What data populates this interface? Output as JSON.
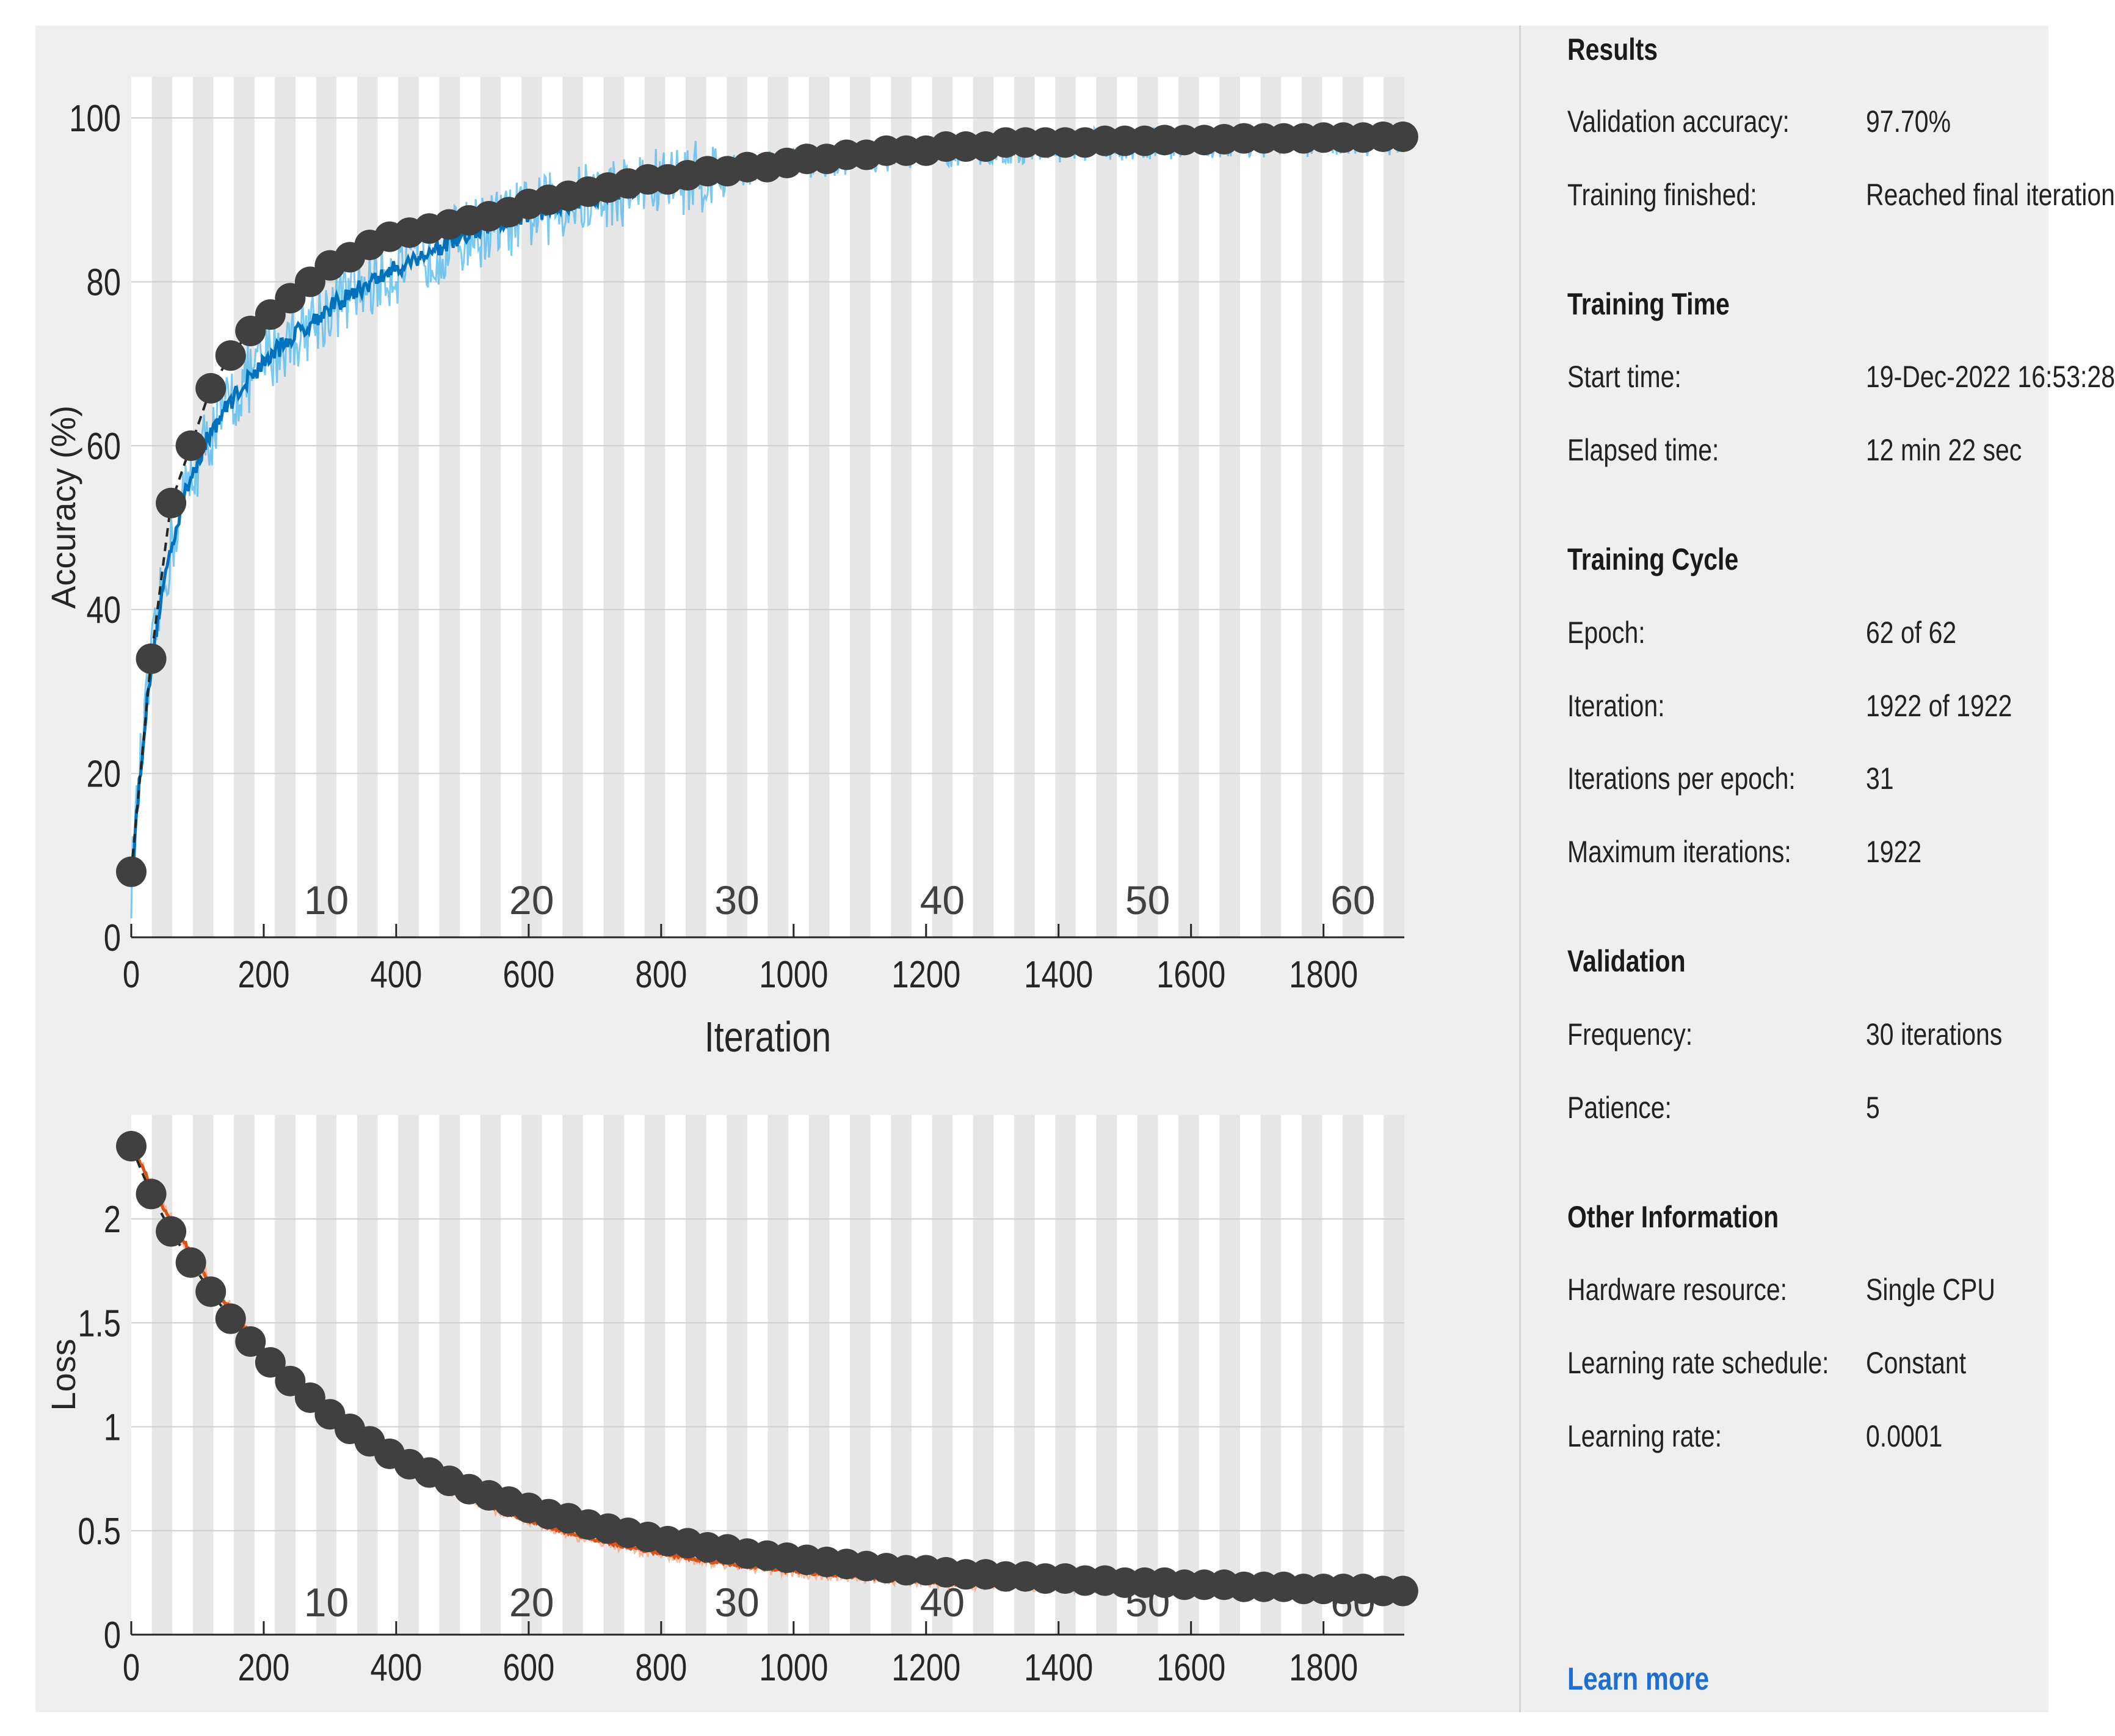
{
  "colors": {
    "background": "#efefef",
    "plot_bg": "#ffffff",
    "epoch_band": "#e6e6e6",
    "accuracy_line": "#0072bd",
    "accuracy_raw": "#4db8f0",
    "loss_line": "#d95319",
    "loss_raw": "#f6a37f",
    "validation_marker": "#404040",
    "link": "#1f6fd1"
  },
  "chart_data": [
    {
      "type": "line",
      "name": "accuracy",
      "title": "",
      "xlabel": "Iteration",
      "ylabel": "Accuracy (%)",
      "xlim": [
        0,
        1922
      ],
      "ylim": [
        0,
        105
      ],
      "xticks": [
        0,
        200,
        400,
        600,
        800,
        1000,
        1200,
        1400,
        1600,
        1800
      ],
      "yticks": [
        0,
        20,
        40,
        60,
        80,
        100
      ],
      "epoch_labels": [
        10,
        20,
        30,
        40,
        50,
        60
      ],
      "iterations_per_epoch": 31,
      "grid": true,
      "series": [
        {
          "name": "Training accuracy (smoothed)",
          "model": "acc",
          "noise": 4.5
        },
        {
          "name": "Validation accuracy",
          "x": [
            0,
            30,
            60,
            90,
            120,
            150,
            180,
            210,
            240,
            270,
            300,
            330,
            360,
            390,
            420,
            450,
            480,
            510,
            540,
            570,
            600,
            630,
            660,
            690,
            720,
            750,
            780,
            810,
            840,
            870,
            900,
            930,
            960,
            990,
            1020,
            1050,
            1080,
            1110,
            1140,
            1170,
            1200,
            1230,
            1260,
            1290,
            1320,
            1350,
            1380,
            1410,
            1440,
            1470,
            1500,
            1530,
            1560,
            1590,
            1620,
            1650,
            1680,
            1710,
            1740,
            1770,
            1800,
            1830,
            1860,
            1890,
            1920
          ],
          "y": [
            8.0,
            34.0,
            53.0,
            60.0,
            67.0,
            71.0,
            74.0,
            76.0,
            78.0,
            80.0,
            82.0,
            83.0,
            84.5,
            85.5,
            86.0,
            86.5,
            87.0,
            87.5,
            88.0,
            88.5,
            89.5,
            90.0,
            90.5,
            91.0,
            91.5,
            92.0,
            92.5,
            92.5,
            93.0,
            93.5,
            93.5,
            94.0,
            94.0,
            94.5,
            95.0,
            95.0,
            95.5,
            95.5,
            96.0,
            96.0,
            96.0,
            96.5,
            96.5,
            96.5,
            97.0,
            97.0,
            97.0,
            97.0,
            97.0,
            97.2,
            97.2,
            97.2,
            97.3,
            97.3,
            97.3,
            97.4,
            97.5,
            97.5,
            97.5,
            97.5,
            97.6,
            97.6,
            97.6,
            97.7,
            97.7
          ]
        }
      ]
    },
    {
      "type": "line",
      "name": "loss",
      "title": "",
      "xlabel": "",
      "ylabel": "Loss",
      "xlim": [
        0,
        1922
      ],
      "ylim": [
        0,
        2.5
      ],
      "xticks": [
        0,
        200,
        400,
        600,
        800,
        1000,
        1200,
        1400,
        1600,
        1800
      ],
      "yticks": [
        0,
        0.5,
        1,
        1.5,
        2
      ],
      "epoch_labels": [
        10,
        20,
        30,
        40,
        50,
        60
      ],
      "iterations_per_epoch": 31,
      "grid": true,
      "series": [
        {
          "name": "Training loss (smoothed)",
          "model": "loss",
          "noise": 0.03
        },
        {
          "name": "Validation loss",
          "x": [
            0,
            30,
            60,
            90,
            120,
            150,
            180,
            210,
            240,
            270,
            300,
            330,
            360,
            390,
            420,
            450,
            480,
            510,
            540,
            570,
            600,
            630,
            660,
            690,
            720,
            750,
            780,
            810,
            840,
            870,
            900,
            930,
            960,
            990,
            1020,
            1050,
            1080,
            1110,
            1140,
            1170,
            1200,
            1230,
            1260,
            1290,
            1320,
            1350,
            1380,
            1410,
            1440,
            1470,
            1500,
            1530,
            1560,
            1590,
            1620,
            1650,
            1680,
            1710,
            1740,
            1770,
            1800,
            1830,
            1860,
            1890,
            1920
          ],
          "y": [
            2.35,
            2.12,
            1.94,
            1.79,
            1.65,
            1.52,
            1.41,
            1.31,
            1.22,
            1.14,
            1.06,
            0.99,
            0.93,
            0.87,
            0.82,
            0.78,
            0.74,
            0.7,
            0.67,
            0.64,
            0.61,
            0.58,
            0.56,
            0.53,
            0.51,
            0.49,
            0.47,
            0.45,
            0.44,
            0.42,
            0.41,
            0.39,
            0.38,
            0.37,
            0.36,
            0.35,
            0.34,
            0.33,
            0.32,
            0.31,
            0.31,
            0.3,
            0.29,
            0.29,
            0.28,
            0.28,
            0.27,
            0.27,
            0.26,
            0.26,
            0.25,
            0.25,
            0.25,
            0.24,
            0.24,
            0.24,
            0.23,
            0.23,
            0.23,
            0.22,
            0.22,
            0.22,
            0.22,
            0.21,
            0.21
          ]
        }
      ]
    }
  ],
  "panel": {
    "results": {
      "heading": "Results",
      "validation_accuracy_label": "Validation accuracy:",
      "validation_accuracy_value": "97.70%",
      "training_finished_label": "Training finished:",
      "training_finished_value": "Reached final iteration"
    },
    "training_time": {
      "heading": "Training Time",
      "start_time_label": "Start time:",
      "start_time_value": "19-Dec-2022 16:53:28",
      "elapsed_time_label": "Elapsed time:",
      "elapsed_time_value": "12 min 22 sec"
    },
    "training_cycle": {
      "heading": "Training Cycle",
      "epoch_label": "Epoch:",
      "epoch_value": "62 of 62",
      "iteration_label": "Iteration:",
      "iteration_value": "1922 of 1922",
      "iterations_per_epoch_label": "Iterations per epoch:",
      "iterations_per_epoch_value": "31",
      "maximum_iterations_label": "Maximum iterations:",
      "maximum_iterations_value": "1922"
    },
    "validation": {
      "heading": "Validation",
      "frequency_label": "Frequency:",
      "frequency_value": "30 iterations",
      "patience_label": "Patience:",
      "patience_value": "5"
    },
    "other_information": {
      "heading": "Other Information",
      "hardware_resource_label": "Hardware resource:",
      "hardware_resource_value": "Single CPU",
      "learning_rate_schedule_label": "Learning rate schedule:",
      "learning_rate_schedule_value": "Constant",
      "learning_rate_label": "Learning rate:",
      "learning_rate_value": "0.0001"
    },
    "learn_more": "Learn more"
  }
}
